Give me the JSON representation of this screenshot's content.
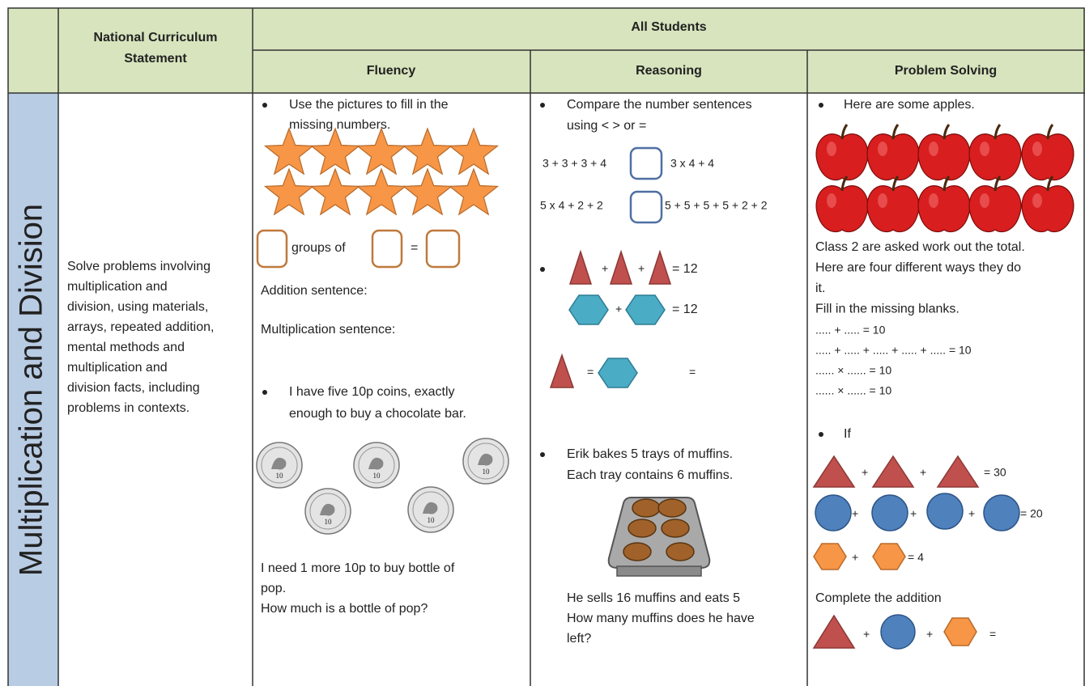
{
  "header": {
    "curriculum_lines": [
      "National Curriculum",
      "Statement"
    ],
    "all_students": "All Students",
    "fluency": "Fluency",
    "reasoning": "Reasoning",
    "problem_solving": "Problem Solving"
  },
  "side_label": "Multiplication and Division",
  "statement_lines": [
    "Solve problems involving",
    "multiplication and",
    "division, using materials,",
    "arrays, repeated addition,",
    "mental methods and",
    "multiplication and",
    "division facts, including",
    "problems in contexts."
  ],
  "fluency": {
    "task1_lines": [
      "Use the pictures to fill in the",
      "missing numbers."
    ],
    "groups_of": "groups of",
    "equals": "=",
    "addition": "Addition sentence:",
    "multiplication": "Multiplication sentence:",
    "task2_lines": [
      "I have five 10p coins, exactly",
      "enough to buy a chocolate bar."
    ],
    "coin_label": "10",
    "question_lines": [
      "I need 1 more 10p to buy bottle of",
      "pop.",
      "How much is a bottle of pop?"
    ]
  },
  "reasoning": {
    "task1_lines": [
      "Compare the number sentences",
      "using <  >  or ="
    ],
    "comparisons": [
      {
        "left": "3 + 3 + 3 + 4",
        "right": "3 x 4 + 4"
      },
      {
        "left": "5 x 4 + 2 + 2",
        "right": "5 + 5 + 5 + 5 + 2 + 2"
      }
    ],
    "plus": "+",
    "triangle_total": "= 12",
    "hexagon_total": "= 12",
    "equals": "=",
    "task3_lines": [
      "Erik bakes 5 trays of muffins.",
      "Each tray contains 6 muffins."
    ],
    "question_lines": [
      "He sells 16 muffins and eats 5",
      "How many muffins does he have",
      "left?"
    ]
  },
  "problem_solving": {
    "intro": "Here are some apples.",
    "text_lines": [
      "Class 2 are asked work out the total.",
      "Here are four different ways they do",
      "it.",
      "Fill in the missing blanks."
    ],
    "blanks": [
      "..... + ..... = 10",
      "..... + ..... + ..... + ..... + ..... = 10",
      "...... × ...... = 10",
      "...... × ...... = 10"
    ],
    "if": "If",
    "plus": "+",
    "triangle_total": "= 30",
    "circle_total": "= 20",
    "hexagon_total": "= 4",
    "complete": "Complete the addition",
    "equals": "="
  }
}
